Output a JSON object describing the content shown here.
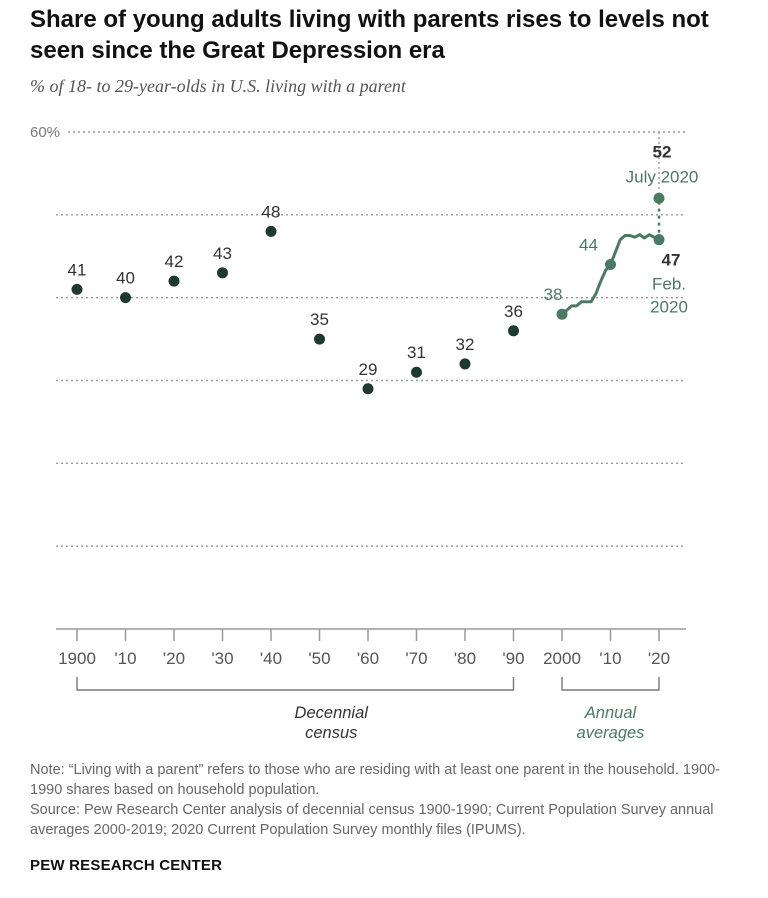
{
  "title": "Share of young adults living with parents rises to levels not seen since the Great Depression era",
  "subtitle": "% of 18- to 29-year-olds in U.S. living with a parent",
  "note": "Note: “Living with a parent” refers to those who are residing with at least one parent in the household. 1900-1990 shares based on household population.",
  "source": "Source: Pew Research Center analysis of decennial census 1900-1990; Current Population Survey annual averages 2000-2019; 2020 Current Population Survey monthly files (IPUMS).",
  "brand": "PEW RESEARCH CENTER",
  "colors": {
    "decennial": "#1e3a30",
    "annual": "#4a7a64",
    "grid": "#9a9a9a",
    "text": "#555555"
  },
  "chart_data": {
    "type": "scatter",
    "ylim": [
      0,
      60
    ],
    "y_tick_label": "60%",
    "x_tick_labels": [
      "1900",
      "'10",
      "'20",
      "'30",
      "'40",
      "'50",
      "'60",
      "'70",
      "'80",
      "'90",
      "2000",
      "'10",
      "'20"
    ],
    "decennial": {
      "group_label": "Decennial census",
      "points": [
        {
          "x": 1900,
          "y": 41,
          "label": "41"
        },
        {
          "x": 1910,
          "y": 40,
          "label": "40"
        },
        {
          "x": 1920,
          "y": 42,
          "label": "42"
        },
        {
          "x": 1930,
          "y": 43,
          "label": "43"
        },
        {
          "x": 1940,
          "y": 48,
          "label": "48"
        },
        {
          "x": 1950,
          "y": 35,
          "label": "35"
        },
        {
          "x": 1960,
          "y": 29,
          "label": "29"
        },
        {
          "x": 1970,
          "y": 31,
          "label": "31"
        },
        {
          "x": 1980,
          "y": 32,
          "label": "32"
        },
        {
          "x": 1990,
          "y": 36,
          "label": "36"
        }
      ]
    },
    "annual": {
      "group_label": "Annual averages",
      "line": [
        [
          2000,
          38
        ],
        [
          2001,
          38.5
        ],
        [
          2002,
          39
        ],
        [
          2003,
          39
        ],
        [
          2004,
          39.5
        ],
        [
          2005,
          39.5
        ],
        [
          2006,
          39.5
        ],
        [
          2007,
          40.5
        ],
        [
          2008,
          42
        ],
        [
          2009,
          43.3
        ],
        [
          2010,
          44
        ],
        [
          2011,
          45.5
        ],
        [
          2012,
          47
        ],
        [
          2013,
          47.5
        ],
        [
          2014,
          47.5
        ],
        [
          2015,
          47.3
        ],
        [
          2016,
          47.6
        ],
        [
          2017,
          47.2
        ],
        [
          2018,
          47.6
        ],
        [
          2019,
          47.3
        ],
        [
          2020,
          47
        ]
      ],
      "marked_points": [
        {
          "x": 2000,
          "y": 38,
          "label": "38"
        },
        {
          "x": 2010,
          "y": 44,
          "label": "44"
        }
      ],
      "feb_2020": {
        "x": 2020,
        "y": 47,
        "value_label": "47",
        "label": "Feb. 2020"
      },
      "jul_2020": {
        "x": 2020,
        "y": 52,
        "value_label": "52",
        "label": "July 2020"
      }
    }
  }
}
